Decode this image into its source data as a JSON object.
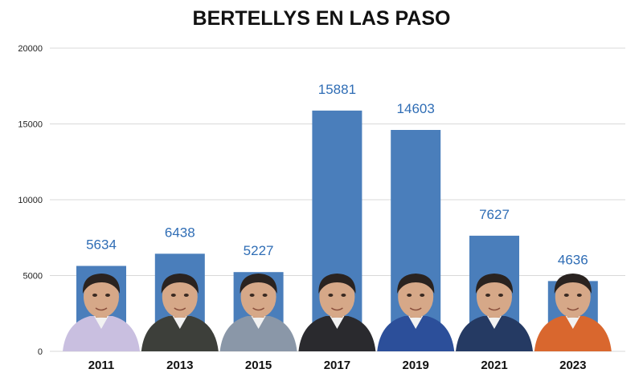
{
  "colors": {
    "bar": "#4a7ebb",
    "data_label": "#2f6db5",
    "grid": "#d9d9d9"
  },
  "chart_data": {
    "type": "bar",
    "title": "BERTELLYS EN LAS PASO",
    "xlabel": "",
    "ylabel": "",
    "categories": [
      "2011",
      "2013",
      "2015",
      "2017",
      "2019",
      "2021",
      "2023"
    ],
    "values": [
      5634,
      6438,
      5227,
      15881,
      14603,
      7627,
      4636
    ],
    "data_labels": [
      "5634",
      "6438",
      "5227",
      "15881",
      "14603",
      "7627",
      "4636"
    ],
    "ylim": [
      0,
      20000
    ],
    "yticks": [
      0,
      5000,
      10000,
      15000,
      20000
    ],
    "ytick_labels": [
      "0",
      "5000",
      "10000",
      "15000",
      "20000"
    ],
    "grid": true,
    "legend": "none",
    "annotations": "portrait photo of the candidate overlaid at the base of each bar"
  }
}
